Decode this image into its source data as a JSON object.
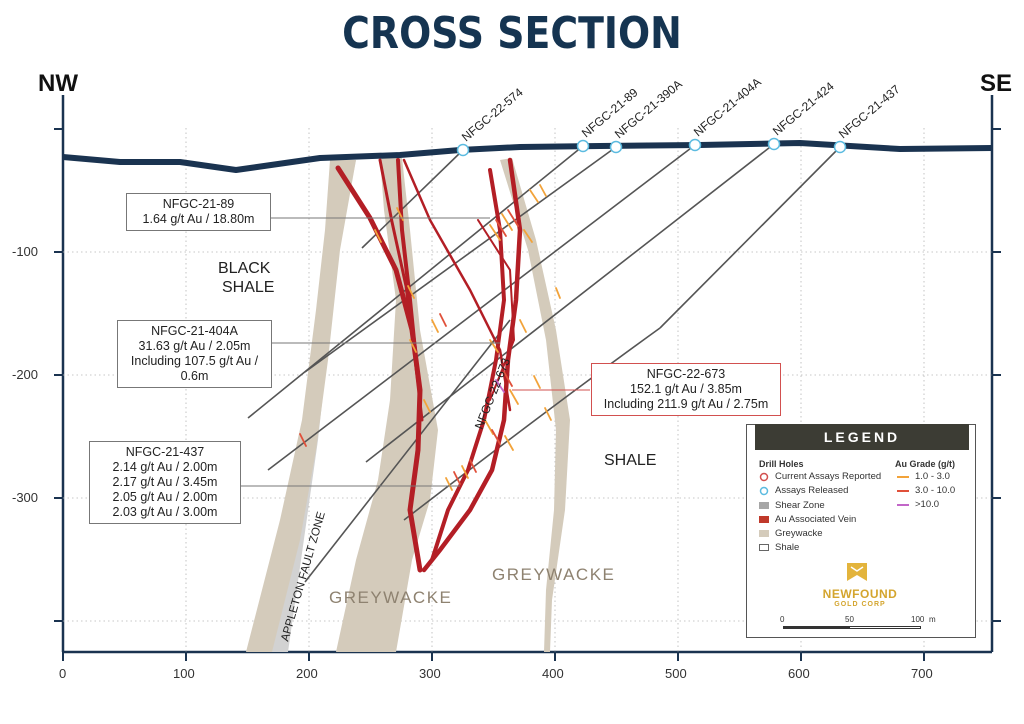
{
  "title": "CROSS SECTION",
  "directions": {
    "left": "NW",
    "right": "SE"
  },
  "axes": {
    "x_ticks": [
      "0",
      "100",
      "200",
      "300",
      "400",
      "500",
      "600",
      "700"
    ],
    "y_ticks": [
      "-100",
      "-200",
      "-300"
    ]
  },
  "drill_holes": [
    {
      "id": "NFGC-22-574",
      "status": "Assays Released"
    },
    {
      "id": "NFGC-21-89",
      "status": "Assays Released"
    },
    {
      "id": "NFGC-21-390A",
      "status": "Assays Released"
    },
    {
      "id": "NFGC-21-404A",
      "status": "Assays Released"
    },
    {
      "id": "NFGC-21-424",
      "status": "Assays Released"
    },
    {
      "id": "NFGC-21-437",
      "status": "Assays Released"
    },
    {
      "id": "NFGC-22-673",
      "status": "Current Assays Reported"
    }
  ],
  "callouts": {
    "c89": {
      "line1": "NFGC-21-89",
      "line2": "1.64 g/t Au / 18.80m"
    },
    "c404a": {
      "line1": "NFGC-21-404A",
      "line2": "31.63 g/t Au / 2.05m",
      "line3": "Including 107.5 g/t Au / 0.6m"
    },
    "c673": {
      "line1": "NFGC-22-673",
      "line2": "152.1 g/t Au / 3.85m",
      "line3": "Including 211.9 g/t Au / 2.75m"
    },
    "c437": {
      "line1": "NFGC-21-437",
      "line2": "2.14 g/t Au / 2.00m",
      "line3": "2.17 g/t Au / 3.45m",
      "line4": "2.05 g/t Au / 2.00m",
      "line5": "2.03 g/t Au / 3.00m"
    }
  },
  "rock_labels": {
    "black_shale_1": "BLACK",
    "black_shale_2": "SHALE",
    "shale": "SHALE",
    "greywacke_1": "GREYWACKE",
    "greywacke_2": "GREYWACKE",
    "fault": "APPLETON FAULT ZONE"
  },
  "legend": {
    "title": "LEGEND",
    "drill_holes_heading": "Drill Holes",
    "grade_heading": "Au Grade (g/t)",
    "items": [
      "Current Assays Reported",
      "Assays Released",
      "Shear Zone",
      "Au Associated Vein",
      "Greywacke",
      "Shale"
    ],
    "grades": [
      {
        "label": "1.0 - 3.0",
        "color": "#f2a33a"
      },
      {
        "label": "3.0 - 10.0",
        "color": "#e0503a"
      },
      {
        "label": ">10.0",
        "color": "#c266c8"
      }
    ],
    "logo_line1": "NEWFOUND",
    "logo_line2": "GOLD CORP",
    "scale": {
      "s0": "0",
      "s50": "50",
      "s100": "100",
      "unit": "m"
    }
  },
  "colors": {
    "title": "#153451",
    "surface": "#1a3350",
    "vein": "#b31e25",
    "greywacke": "#d4cbbb",
    "shear": "#d2d2d2",
    "drill": "#555555",
    "ring_released": "#5bbbe0",
    "ring_current": "#d2504f"
  }
}
